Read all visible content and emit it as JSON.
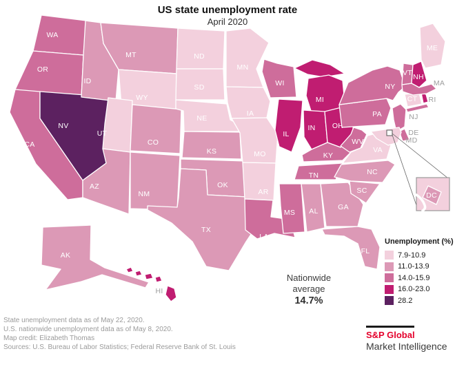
{
  "header": {
    "title": "US state unemployment rate",
    "subtitle": "April 2020"
  },
  "legend": {
    "title": "Unemployment (%)",
    "bins": [
      {
        "label": "7.9-10.9",
        "color": "#F3D0DD"
      },
      {
        "label": "11.0-13.9",
        "color": "#DC99B6"
      },
      {
        "label": "14.0-15.9",
        "color": "#CE6D9B"
      },
      {
        "label": "16.0-23.0",
        "color": "#C01D71"
      },
      {
        "label": "28.2",
        "color": "#5C2160"
      }
    ]
  },
  "annotation": {
    "line1": "Nationwide",
    "line2": "average",
    "value": "14.7%"
  },
  "inset": {
    "label": "DC"
  },
  "footnotes": [
    "State unemployment data as of May 22, 2020.",
    "U.S. nationwide unemployment data as of May 8, 2020.",
    "Map credit: Elizabeth Thomas",
    "Sources: U.S. Bureau of Labor Statistics; Federal Reserve Bank of St. Louis"
  ],
  "logo": {
    "brand": "S&P Global",
    "division": "Market Intelligence",
    "brand_color": "#E4002B"
  },
  "chart_data": {
    "type": "choropleth",
    "title": "US state unemployment rate",
    "subtitle": "April 2020",
    "unit": "percent",
    "legend_title": "Unemployment (%)",
    "legend_position": "right",
    "nationwide_average": "14.7%",
    "bins": [
      {
        "label": "7.9-10.9",
        "color": "#F3D0DD"
      },
      {
        "label": "11.0-13.9",
        "color": "#DC99B6"
      },
      {
        "label": "14.0-15.9",
        "color": "#CE6D9B"
      },
      {
        "label": "16.0-23.0",
        "color": "#C01D71"
      },
      {
        "label": "28.2",
        "color": "#5C2160"
      }
    ],
    "states": [
      {
        "abbr": "WA",
        "bin": "14.0-15.9"
      },
      {
        "abbr": "OR",
        "bin": "14.0-15.9"
      },
      {
        "abbr": "CA",
        "bin": "14.0-15.9"
      },
      {
        "abbr": "NV",
        "bin": "28.2"
      },
      {
        "abbr": "ID",
        "bin": "11.0-13.9"
      },
      {
        "abbr": "MT",
        "bin": "11.0-13.9"
      },
      {
        "abbr": "WY",
        "bin": "7.9-10.9"
      },
      {
        "abbr": "UT",
        "bin": "7.9-10.9"
      },
      {
        "abbr": "AZ",
        "bin": "11.0-13.9"
      },
      {
        "abbr": "NM",
        "bin": "11.0-13.9"
      },
      {
        "abbr": "CO",
        "bin": "11.0-13.9"
      },
      {
        "abbr": "ND",
        "bin": "7.9-10.9"
      },
      {
        "abbr": "SD",
        "bin": "7.9-10.9"
      },
      {
        "abbr": "NE",
        "bin": "7.9-10.9"
      },
      {
        "abbr": "KS",
        "bin": "11.0-13.9"
      },
      {
        "abbr": "OK",
        "bin": "11.0-13.9"
      },
      {
        "abbr": "TX",
        "bin": "11.0-13.9"
      },
      {
        "abbr": "MN",
        "bin": "7.9-10.9"
      },
      {
        "abbr": "IA",
        "bin": "7.9-10.9"
      },
      {
        "abbr": "MO",
        "bin": "7.9-10.9"
      },
      {
        "abbr": "AR",
        "bin": "7.9-10.9"
      },
      {
        "abbr": "LA",
        "bin": "14.0-15.9"
      },
      {
        "abbr": "WI",
        "bin": "14.0-15.9"
      },
      {
        "abbr": "IL",
        "bin": "16.0-23.0"
      },
      {
        "abbr": "MI",
        "bin": "16.0-23.0"
      },
      {
        "abbr": "IN",
        "bin": "16.0-23.0"
      },
      {
        "abbr": "OH",
        "bin": "16.0-23.0"
      },
      {
        "abbr": "KY",
        "bin": "14.0-15.9"
      },
      {
        "abbr": "TN",
        "bin": "14.0-15.9"
      },
      {
        "abbr": "MS",
        "bin": "14.0-15.9"
      },
      {
        "abbr": "AL",
        "bin": "11.0-13.9"
      },
      {
        "abbr": "GA",
        "bin": "11.0-13.9"
      },
      {
        "abbr": "FL",
        "bin": "11.0-13.9"
      },
      {
        "abbr": "SC",
        "bin": "11.0-13.9"
      },
      {
        "abbr": "NC",
        "bin": "11.0-13.9"
      },
      {
        "abbr": "VA",
        "bin": "7.9-10.9"
      },
      {
        "abbr": "WV",
        "bin": "14.0-15.9"
      },
      {
        "abbr": "PA",
        "bin": "14.0-15.9"
      },
      {
        "abbr": "NY",
        "bin": "14.0-15.9"
      },
      {
        "abbr": "NJ",
        "bin": "14.0-15.9"
      },
      {
        "abbr": "DE",
        "bin": "14.0-15.9"
      },
      {
        "abbr": "MD",
        "bin": "7.9-10.9"
      },
      {
        "abbr": "CT",
        "bin": "7.9-10.9"
      },
      {
        "abbr": "RI",
        "bin": "16.0-23.0"
      },
      {
        "abbr": "MA",
        "bin": "14.0-15.9"
      },
      {
        "abbr": "VT",
        "bin": "14.0-15.9"
      },
      {
        "abbr": "NH",
        "bin": "16.0-23.0"
      },
      {
        "abbr": "ME",
        "bin": "7.9-10.9"
      },
      {
        "abbr": "AK",
        "bin": "11.0-13.9"
      },
      {
        "abbr": "HI",
        "bin": "16.0-23.0"
      },
      {
        "abbr": "DC",
        "bin": "11.0-13.9"
      }
    ]
  }
}
